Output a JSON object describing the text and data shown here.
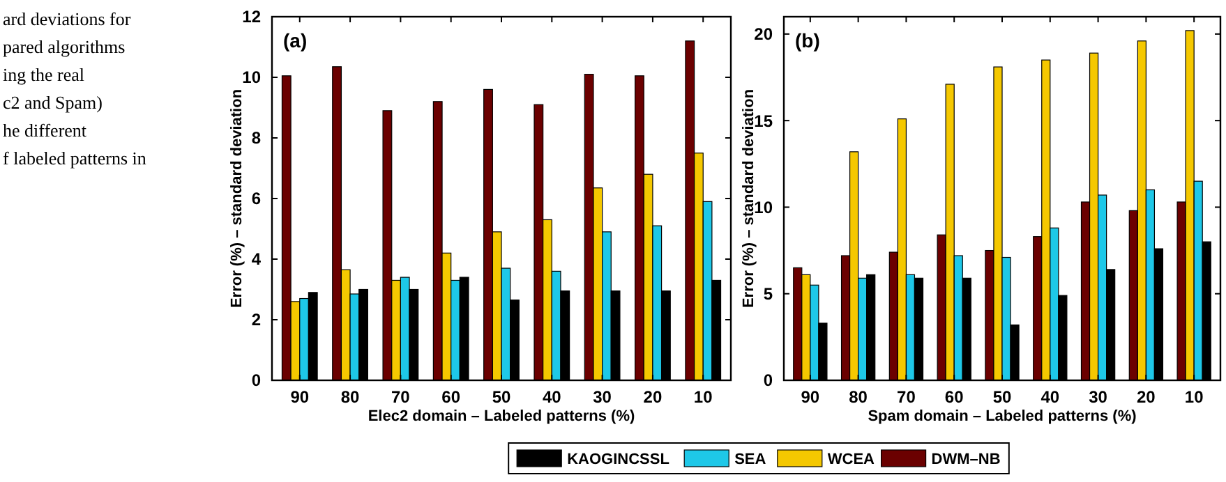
{
  "chart_data": [
    {
      "type": "bar",
      "title": "(a)",
      "xlabel": "Elec2 domain – Labeled patterns (%)",
      "ylabel": "Error (%) – standard deviation",
      "categories": [
        "90",
        "80",
        "70",
        "60",
        "50",
        "40",
        "30",
        "20",
        "10"
      ],
      "series": [
        {
          "name": "DWM–NB",
          "color": "#6b0000",
          "values": [
            10.05,
            10.35,
            8.9,
            9.2,
            9.6,
            9.1,
            10.1,
            10.05,
            11.2
          ]
        },
        {
          "name": "WCEA",
          "color": "#f5c800",
          "values": [
            2.6,
            3.65,
            3.3,
            4.2,
            4.9,
            5.3,
            6.35,
            6.8,
            7.5
          ]
        },
        {
          "name": "SEA",
          "color": "#1ec8e8",
          "values": [
            2.7,
            2.85,
            3.4,
            3.3,
            3.7,
            3.6,
            4.9,
            5.1,
            5.9
          ]
        },
        {
          "name": "KAOGINCSSL",
          "color": "#000000",
          "values": [
            2.9,
            3.0,
            3.0,
            3.4,
            2.65,
            2.95,
            2.95,
            2.95,
            3.3
          ]
        }
      ],
      "ylim": [
        0,
        12
      ],
      "yticks": [
        0,
        2,
        4,
        6,
        8,
        10,
        12
      ],
      "grid": false,
      "legend": "bottom",
      "annotations": [
        "ard deviations for",
        "pared algorithms",
        "ing the real",
        "c2 and Spam)",
        "he different",
        "f labeled patterns in"
      ]
    },
    {
      "type": "bar",
      "title": "(b)",
      "xlabel": "Spam domain – Labeled patterns (%)",
      "ylabel": "Error (%) – standard deviation",
      "categories": [
        "90",
        "80",
        "70",
        "60",
        "50",
        "40",
        "30",
        "20",
        "10"
      ],
      "series": [
        {
          "color": "#6b0000",
          "values": [
            6.5,
            7.2,
            7.4,
            8.4,
            7.5,
            8.3,
            10.3,
            9.8,
            10.3
          ]
        },
        {
          "color": "#f5c800",
          "values": [
            6.1,
            13.2,
            15.1,
            17.1,
            18.1,
            18.5,
            18.9,
            19.6,
            20.2
          ]
        },
        {
          "color": "#1ec8e8",
          "values": [
            5.5,
            5.9,
            6.1,
            7.2,
            7.1,
            8.8,
            10.7,
            11.0,
            11.5
          ]
        },
        {
          "color": "#000000",
          "values": [
            3.3,
            6.1,
            5.9,
            5.9,
            3.2,
            4.9,
            6.4,
            7.6,
            8.0
          ]
        }
      ],
      "ylim": [
        0,
        21
      ],
      "yticks": [
        0,
        5,
        10,
        15,
        20
      ],
      "grid": false
    }
  ]
}
